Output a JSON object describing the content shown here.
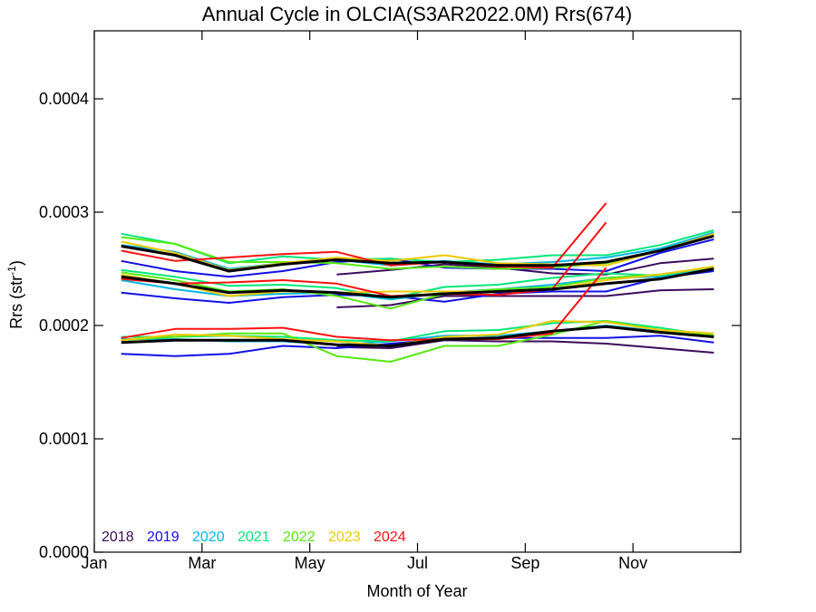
{
  "chart_data": {
    "type": "line",
    "title": "Annual Cycle in OLCIA(S3AR2022.0M) Rrs(674)",
    "xlabel": "Month of Year",
    "ylabel_main": "Rrs (str",
    "ylabel_sup": "-1",
    "ylabel_close": ")",
    "xlim": [
      0,
      12
    ],
    "ylim": [
      0,
      0.00046
    ],
    "xticks": [
      {
        "pos": 0,
        "label": "Jan"
      },
      {
        "pos": 2,
        "label": "Mar"
      },
      {
        "pos": 4,
        "label": "May"
      },
      {
        "pos": 6,
        "label": "Jul"
      },
      {
        "pos": 8,
        "label": "Sep"
      },
      {
        "pos": 10,
        "label": "Nov"
      }
    ],
    "yticks": [
      {
        "pos": 0.0,
        "label": "0.0000"
      },
      {
        "pos": 0.0001,
        "label": "0.0001"
      },
      {
        "pos": 0.0002,
        "label": "0.0002"
      },
      {
        "pos": 0.0003,
        "label": "0.0003"
      },
      {
        "pos": 0.0004,
        "label": "0.0004"
      }
    ],
    "x": [
      0.5,
      1.5,
      2.5,
      3.5,
      4.5,
      5.5,
      6.5,
      7.5,
      8.5,
      9.5,
      10.5,
      11.5
    ],
    "legend_position": "bottom-left",
    "series": [
      {
        "name": "2018",
        "color": "#3d0a5c",
        "width": 2,
        "lines": [
          [
            null,
            null,
            null,
            null,
            0.000216,
            0.000218,
            0.000226,
            0.000226,
            0.000226,
            0.000226,
            0.000231,
            0.000232
          ],
          [
            null,
            null,
            null,
            null,
            0.000245,
            0.000249,
            0.000254,
            0.000251,
            0.000246,
            0.000245,
            0.000255,
            0.000259
          ],
          [
            null,
            null,
            null,
            null,
            0.000181,
            0.00018,
            0.000187,
            0.000186,
            0.000186,
            0.000184,
            0.00018,
            0.000176
          ]
        ]
      },
      {
        "name": "2019",
        "color": "#1010e8",
        "width": 2,
        "lines": [
          [
            0.000229,
            0.000224,
            0.00022,
            0.000225,
            0.000227,
            0.000226,
            0.000221,
            0.000228,
            0.00023,
            0.00023,
            0.000242,
            0.000248
          ],
          [
            0.000257,
            0.000248,
            0.000243,
            0.000248,
            0.000256,
            0.000259,
            0.000251,
            0.00025,
            0.00025,
            0.000248,
            0.000264,
            0.000276
          ],
          [
            0.000175,
            0.000173,
            0.000175,
            0.000182,
            0.00018,
            0.000184,
            0.000188,
            0.000189,
            0.000189,
            0.000189,
            0.000191,
            0.000185
          ]
        ]
      },
      {
        "name": "2020",
        "color": "#00b8e6",
        "width": 2,
        "lines": [
          [
            0.00024,
            0.000232,
            0.000226,
            0.000228,
            0.000229,
            0.000223,
            0.000229,
            0.000232,
            0.000236,
            0.000242,
            0.000243,
            0.00025
          ],
          [
            0.000271,
            0.000265,
            0.00025,
            0.000255,
            0.000258,
            0.000253,
            0.000257,
            0.000254,
            0.000256,
            0.00026,
            0.000268,
            0.000282
          ],
          [
            0.000188,
            0.000188,
            0.000186,
            0.000186,
            0.000183,
            0.000186,
            0.000191,
            0.000191,
            0.000195,
            0.0002,
            0.000195,
            0.00019
          ]
        ]
      },
      {
        "name": "2021",
        "color": "#00e87a",
        "width": 2,
        "lines": [
          [
            0.000249,
            0.000243,
            0.000235,
            0.000236,
            0.000233,
            0.000224,
            0.000234,
            0.000236,
            0.000242,
            0.000246,
            0.000244,
            0.000252
          ],
          [
            0.000281,
            0.000272,
            0.000255,
            0.000261,
            0.000258,
            0.000259,
            0.000256,
            0.000258,
            0.000262,
            0.000262,
            0.000271,
            0.000284
          ],
          [
            0.00019,
            0.00019,
            0.000191,
            0.00019,
            0.000187,
            0.000186,
            0.000195,
            0.000196,
            0.000202,
            0.000204,
            0.000198,
            0.000191
          ]
        ]
      },
      {
        "name": "2022",
        "color": "#55ea10",
        "width": 2,
        "lines": [
          [
            0.000247,
            0.00024,
            0.00023,
            0.000232,
            0.000226,
            0.000215,
            0.000228,
            0.000232,
            0.000234,
            0.000242,
            0.000245,
            0.000252
          ],
          [
            0.000278,
            0.000272,
            0.000256,
            0.000256,
            0.000255,
            0.00025,
            0.000252,
            0.00025,
            0.000251,
            0.000255,
            0.000266,
            0.00028
          ],
          [
            0.000187,
            0.00019,
            0.000193,
            0.000193,
            0.000173,
            0.000168,
            0.000182,
            0.000182,
            0.000192,
            0.000204,
            0.000196,
            0.000192
          ]
        ]
      },
      {
        "name": "2023",
        "color": "#f0c800",
        "width": 2,
        "lines": [
          [
            0.000245,
            0.000237,
            0.000226,
            0.00023,
            0.000229,
            0.00023,
            0.00023,
            0.00023,
            0.000232,
            0.00024,
            0.000245,
            0.000252
          ],
          [
            0.000274,
            0.000264,
            0.000249,
            0.000255,
            0.00026,
            0.000257,
            0.000262,
            0.000255,
            0.000254,
            0.000253,
            0.000266,
            0.000281
          ],
          [
            0.000187,
            0.000192,
            0.000191,
            0.000188,
            0.000186,
            0.000182,
            0.00019,
            0.000192,
            0.000204,
            0.000203,
            0.000196,
            0.000193
          ]
        ]
      },
      {
        "name": "2024",
        "color": "#ff1010",
        "width": 2,
        "lines": [
          [
            0.000241,
            0.000237,
            0.000238,
            0.00024,
            0.000237,
            0.000226,
            0.000228,
            0.000227,
            0.000232,
            0.000291,
            null,
            null
          ],
          [
            0.000266,
            0.000257,
            0.00026,
            0.000263,
            0.000265,
            0.000253,
            0.000256,
            0.000252,
            0.000251,
            0.000308,
            null,
            null
          ],
          [
            0.000189,
            0.000197,
            0.000197,
            0.000198,
            0.00019,
            0.000187,
            0.000188,
            0.000188,
            0.000193,
            0.000251,
            null,
            null
          ]
        ]
      },
      {
        "color": "#000000",
        "width": 3,
        "lines": [
          [
            0.000243,
            0.000237,
            0.000229,
            0.000231,
            0.000229,
            0.000225,
            0.000228,
            0.00023,
            0.000232,
            0.000237,
            0.000241,
            0.00025
          ],
          [
            0.00027,
            0.000262,
            0.000248,
            0.000254,
            0.000258,
            0.000255,
            0.000256,
            0.000253,
            0.000253,
            0.000256,
            0.000266,
            0.000279
          ],
          [
            0.000185,
            0.000187,
            0.000187,
            0.000187,
            0.000183,
            0.000182,
            0.000188,
            0.000189,
            0.000195,
            0.000199,
            0.000194,
            0.00019
          ]
        ]
      }
    ]
  }
}
